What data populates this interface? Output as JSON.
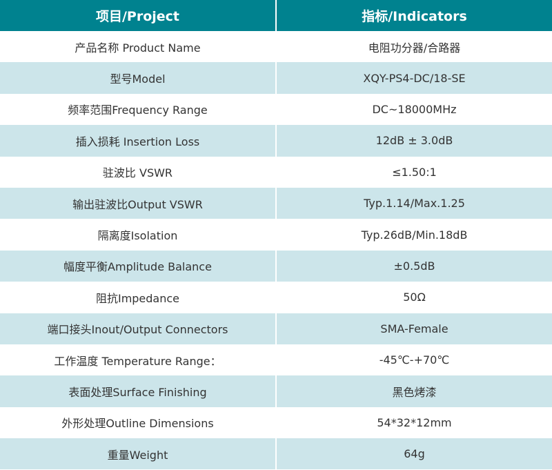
{
  "colors": {
    "header": "#00828f",
    "alt_row": "#cce5ea",
    "text": "#333333"
  },
  "header": {
    "project": "项目/Project",
    "indicators": "指标/Indicators"
  },
  "rows": [
    {
      "project": "产品名称 Product Name",
      "value": "电阻功分器/合路器"
    },
    {
      "project": "型号Model",
      "value": "XQY-PS4-DC/18-SE"
    },
    {
      "project": "频率范围Frequency Range",
      "value": "DC~18000MHz"
    },
    {
      "project": "插入损耗 Insertion Loss",
      "value": "12dB ± 3.0dB"
    },
    {
      "project": "驻波比 VSWR",
      "value": "≤1.50:1"
    },
    {
      "project": "输出驻波比Output VSWR",
      "value": "Typ.1.14/Max.1.25"
    },
    {
      "project": "隔离度Isolation",
      "value": "Typ.26dB/Min.18dB"
    },
    {
      "project": "幅度平衡Amplitude Balance",
      "value": "±0.5dB"
    },
    {
      "project": "阻抗Impedance",
      "value": "50Ω"
    },
    {
      "project": "端口接头Inout/Output Connectors",
      "value": "SMA-Female"
    },
    {
      "project": "工作温度 Temperature Range：",
      "value": "-45℃-+70℃"
    },
    {
      "project": "表面处理Surface Finishing",
      "value": "黑色烤漆"
    },
    {
      "project": "外形处理Outline Dimensions",
      "value": "54*32*12mm"
    },
    {
      "project": "重量Weight",
      "value": "64g"
    }
  ]
}
